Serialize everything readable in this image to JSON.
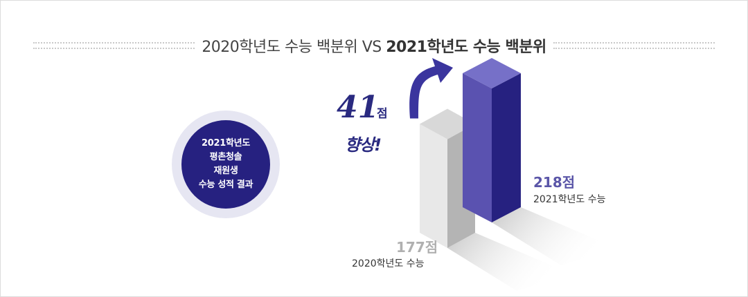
{
  "title": {
    "part_a": "2020학년도 수능 백분위 VS",
    "part_b": "2021학년도 수능 백분위"
  },
  "badge": {
    "lines": [
      "2021학년도",
      "평촌청솔",
      "재원생",
      "수능 성적 결과"
    ]
  },
  "improvement": {
    "value": "41",
    "unit": "점",
    "text": "향상!"
  },
  "chart_data": {
    "type": "bar",
    "categories": [
      "2020학년도 수능",
      "2021학년도 수능"
    ],
    "values": [
      177,
      218
    ],
    "value_labels": [
      "177점",
      "218점"
    ],
    "difference": 41,
    "colors": [
      "#e2e2e2",
      "#3b35a0"
    ]
  }
}
